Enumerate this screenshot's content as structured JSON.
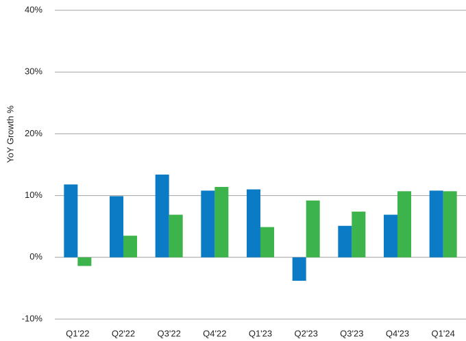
{
  "chart_data": {
    "type": "bar",
    "y_label": "YoY Growth %",
    "categories": [
      "Q1'22",
      "Q2'22",
      "Q3'22",
      "Q4'22",
      "Q1'23",
      "Q2'23",
      "Q3'23",
      "Q4'23",
      "Q1'24"
    ],
    "series": [
      {
        "color": "#0a7bc4",
        "values": [
          11.8,
          9.9,
          13.4,
          10.8,
          11.0,
          -3.8,
          5.1,
          6.9,
          10.8
        ]
      },
      {
        "color": "#3cb44b",
        "values": [
          -1.4,
          3.5,
          6.9,
          11.4,
          4.9,
          9.2,
          7.4,
          10.7,
          10.7
        ]
      }
    ],
    "ylim": [
      -10,
      40
    ],
    "yticks": [
      {
        "value": -10,
        "label": "-10%"
      },
      {
        "value": 0,
        "label": "0%"
      },
      {
        "value": 10,
        "label": "10%"
      },
      {
        "value": 20,
        "label": "20%"
      },
      {
        "value": 30,
        "label": "30%"
      },
      {
        "value": 40,
        "label": "40%"
      }
    ],
    "grid": true
  }
}
